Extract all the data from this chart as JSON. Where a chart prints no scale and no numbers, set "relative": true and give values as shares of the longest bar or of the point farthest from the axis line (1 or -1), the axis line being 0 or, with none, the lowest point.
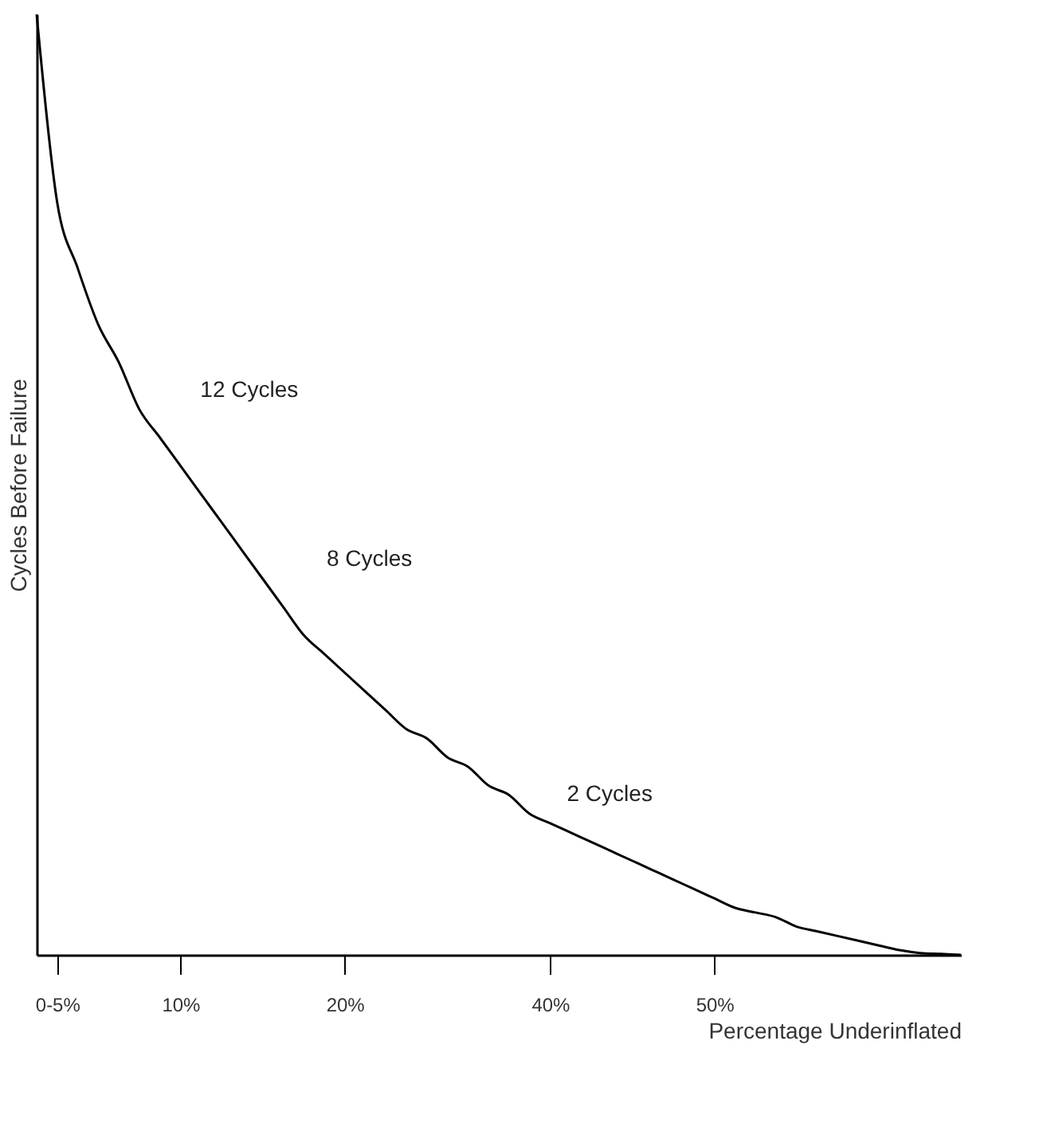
{
  "chart_data": {
    "type": "line",
    "relative": true,
    "categories": [
      null,
      "0-5%",
      null,
      null,
      null,
      null,
      null,
      "10%",
      null,
      null,
      null,
      null,
      null,
      null,
      null,
      "20%",
      null,
      null,
      null,
      null,
      null,
      null,
      null,
      null,
      null,
      "40%",
      null,
      null,
      null,
      null,
      null,
      null,
      null,
      "50%",
      null,
      null,
      null,
      null,
      null,
      null,
      null,
      null,
      null,
      null,
      null,
      null
    ],
    "series": [
      {
        "color": "#000000",
        "values": [
          1.0,
          0.8,
          0.73,
          0.67,
          0.63,
          0.58,
          0.55,
          0.52,
          0.49,
          0.46,
          0.43,
          0.4,
          0.37,
          0.34,
          0.32,
          0.3,
          0.28,
          0.26,
          0.24,
          0.23,
          0.21,
          0.2,
          0.18,
          0.17,
          0.15,
          0.14,
          0.13,
          0.12,
          0.11,
          0.1,
          0.09,
          0.08,
          0.07,
          0.06,
          0.05,
          0.045,
          0.04,
          0.03,
          0.025,
          0.02,
          0.015,
          0.01,
          0.005,
          0.002,
          0.001,
          0
        ]
      }
    ],
    "xlabel": "Percentage Underinflated",
    "ylabel": "Cycles Before Failure",
    "annotations": [
      "12 Cycles",
      "8 Cycles",
      "2 Cycles"
    ],
    "grid": false,
    "marker": "none",
    "line_style": "solid"
  }
}
